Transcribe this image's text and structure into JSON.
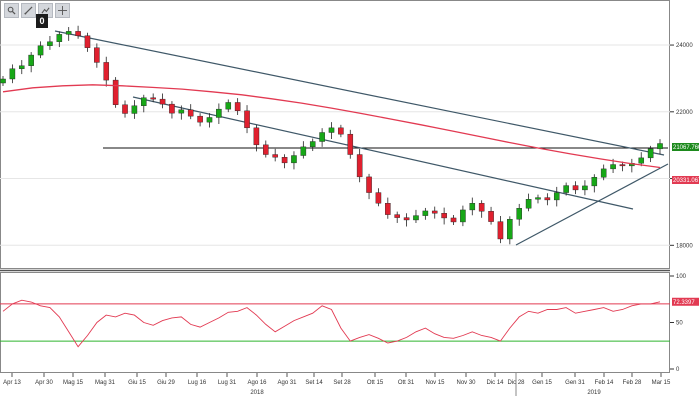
{
  "toolbar": {
    "buttons": [
      {
        "name": "zoom-icon"
      },
      {
        "name": "annotate-icon"
      },
      {
        "name": "draw-icon"
      },
      {
        "name": "crosshair-icon"
      }
    ],
    "badge_label": "0"
  },
  "chart_data": [
    {
      "type": "line",
      "title": "",
      "series": [
        {
          "values": [
            22983,
            23290,
            23380,
            23700,
            23980,
            24100,
            24320,
            24410,
            24280,
            23920,
            23480,
            22950,
            22210,
            21950,
            22180,
            22420,
            22380,
            22230,
            21960,
            22060,
            21870,
            21690,
            21830,
            22080,
            22280,
            22030,
            21520,
            21010,
            20720,
            20640,
            20470,
            20690,
            20950,
            21110,
            21380,
            21520,
            21330,
            20720,
            20050,
            19580,
            19260,
            18920,
            18830,
            18760,
            18890,
            19030,
            18960,
            18820,
            18700,
            19060,
            19260,
            19020,
            18710,
            18190,
            18780,
            19110,
            19380,
            19430,
            19360,
            19580,
            19790,
            19660,
            19780,
            20040,
            20290,
            20420,
            20380,
            20460,
            20620,
            20890,
            21050
          ]
        },
        {
          "name": "",
          "color": "#e23a52",
          "values": [
            22600,
            22720,
            22780,
            22810,
            22780,
            22730,
            22680,
            22600,
            22510,
            22390,
            22260,
            22110,
            21950,
            21780,
            21610,
            21430,
            21250,
            21070,
            20900,
            20740,
            20590,
            20450,
            20330
          ]
        }
      ],
      "ylim": [
        17500,
        25200
      ],
      "yticks": [
        18000,
        20000,
        22000,
        24000
      ],
      "xlabels": [
        "Apr 13",
        "Apr 30",
        "Mag 15",
        "Mag 31",
        "Giu 15",
        "Giu 29",
        "Lug 16",
        "Lug 31",
        "Ago 16",
        "Ago 31",
        "Set 14",
        "Set 28",
        "Ott 15",
        "Ott 31",
        "Nov 15",
        "Nov 30",
        "Dic 14",
        "Dic 28",
        "Gen 15",
        "Gen 31",
        "Feb 14",
        "Feb 28",
        "Mar 15"
      ],
      "year_labels": [
        "2018",
        "2019"
      ],
      "value_tags": [
        {
          "text": "21067.7600",
          "color": "#1d8a1d"
        },
        {
          "text": "20331.0670",
          "color": "#e23a52"
        }
      ]
    },
    {
      "type": "line",
      "series": [
        {
          "name": "",
          "color": "#e23a52",
          "values": [
            62,
            70,
            74,
            72,
            68,
            66,
            56,
            40,
            24,
            36,
            50,
            58,
            56,
            60,
            58,
            50,
            47,
            52,
            55,
            56,
            48,
            45,
            50,
            55,
            61,
            62,
            66,
            58,
            48,
            40,
            46,
            52,
            56,
            60,
            68,
            64,
            44,
            30,
            34,
            37,
            33,
            28,
            30,
            34,
            40,
            44,
            38,
            34,
            33,
            36,
            40,
            36,
            34,
            30,
            44,
            56,
            62,
            60,
            64,
            64,
            66,
            60,
            62,
            64,
            66,
            62,
            64,
            68,
            70,
            70,
            72.3
          ]
        }
      ],
      "ylim": [
        0,
        100
      ],
      "yticks": [
        0,
        50,
        100
      ],
      "reference_lines": [
        {
          "value": 70,
          "color": "#e23a52"
        },
        {
          "value": 30,
          "color": "#2fb52f"
        }
      ],
      "value_tag": {
        "text": "72.3397",
        "color": "#e23a52"
      }
    }
  ]
}
